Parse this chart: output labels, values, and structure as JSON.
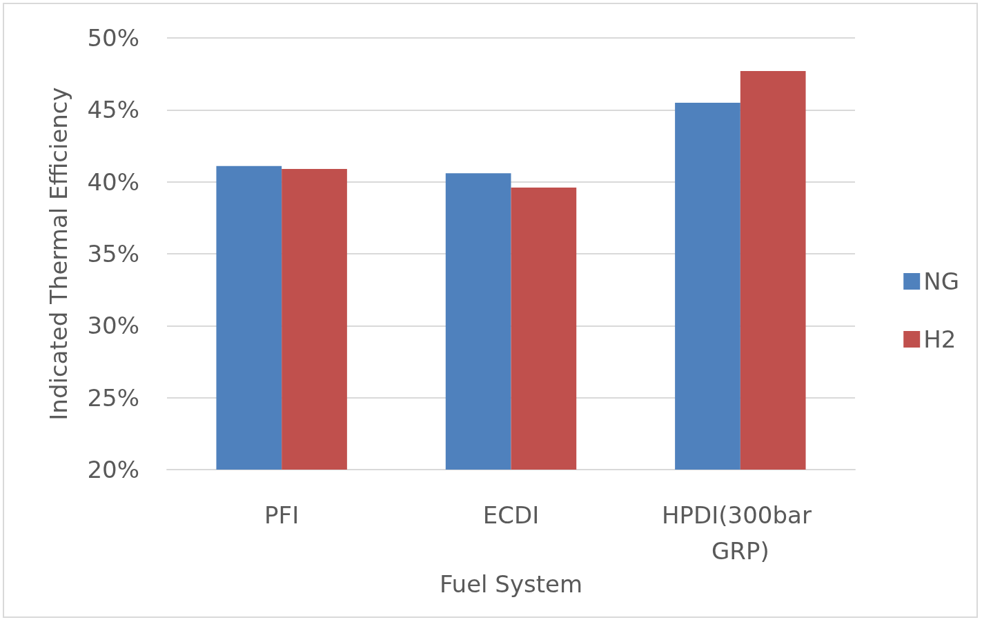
{
  "chart_data": {
    "type": "bar",
    "xlabel": "Fuel System",
    "ylabel": "Indicated Thermal Efficiency",
    "categories": [
      "PFI",
      "ECDI",
      "HPDI(300bar GRP)"
    ],
    "series": [
      {
        "name": "NG",
        "color": "#4f81bd",
        "values": [
          41.1,
          40.6,
          45.5
        ]
      },
      {
        "name": "H2",
        "color": "#c0504d",
        "values": [
          40.9,
          39.6,
          47.7
        ]
      }
    ],
    "ylim": [
      20,
      50
    ],
    "yticks": [
      {
        "value": 20,
        "label": "20%"
      },
      {
        "value": 25,
        "label": "25%"
      },
      {
        "value": 30,
        "label": "30%"
      },
      {
        "value": 35,
        "label": "35%"
      },
      {
        "value": 40,
        "label": "40%"
      },
      {
        "value": 45,
        "label": "45%"
      },
      {
        "value": 50,
        "label": "50%"
      }
    ],
    "grid": "y",
    "legend": "right"
  }
}
